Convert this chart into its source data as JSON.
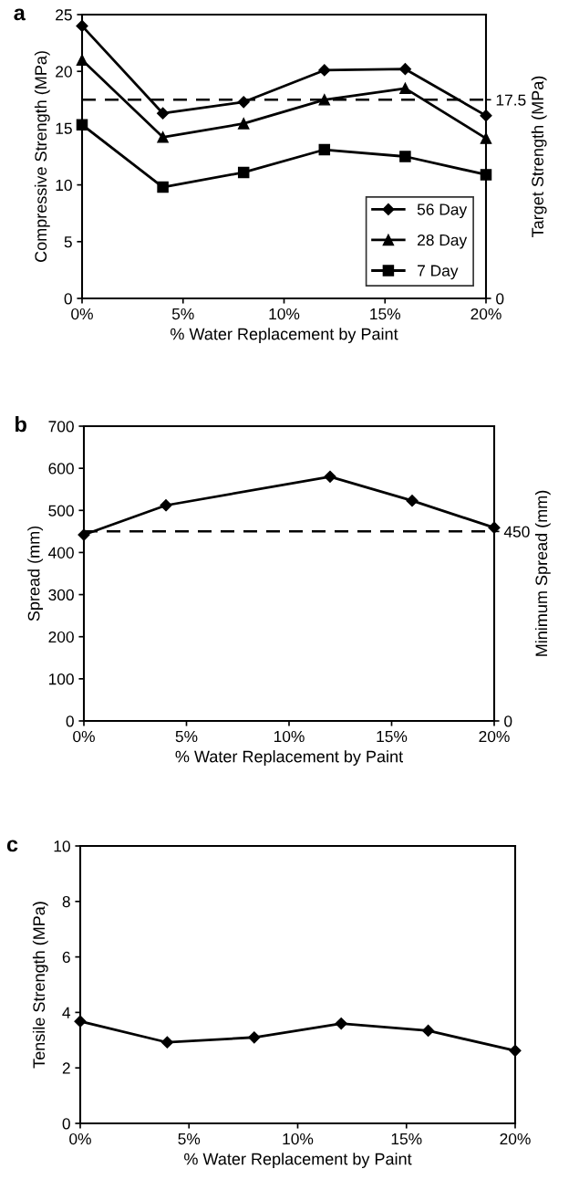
{
  "chart_data": [
    {
      "type": "line",
      "annotations": [
        "a"
      ],
      "xlabel": "% Water Replacement by Paint",
      "ylabel": "Compressive Strength (MPa)",
      "y2label": "Target Strength (MPa)",
      "x": [
        0,
        4,
        8,
        12,
        16,
        20
      ],
      "series": [
        {
          "name": "56 Day",
          "color": "#000000",
          "marker": "diamond",
          "values": [
            24.0,
            16.3,
            17.3,
            20.1,
            20.2,
            16.1
          ]
        },
        {
          "name": "28 Day",
          "color": "#000000",
          "marker": "triangle",
          "values": [
            21.0,
            14.2,
            15.4,
            17.5,
            18.5,
            14.1
          ]
        },
        {
          "name": "7 Day",
          "color": "#000000",
          "marker": "square",
          "values": [
            15.3,
            9.8,
            11.1,
            13.1,
            12.5,
            10.9
          ]
        }
      ],
      "xlim": [
        0,
        20
      ],
      "xticks": [
        {
          "value": 0,
          "label": "0%"
        },
        {
          "value": 5,
          "label": "5%"
        },
        {
          "value": 10,
          "label": "10%"
        },
        {
          "value": 15,
          "label": "15%"
        },
        {
          "value": 20,
          "label": "20%"
        }
      ],
      "ylim": [
        0,
        25
      ],
      "yticks": [
        0,
        5,
        10,
        15,
        20,
        25
      ],
      "y2lim": [
        0,
        25
      ],
      "y2ticks": [
        0,
        17.5
      ],
      "ref_lines": [
        {
          "axis": "y",
          "value": 17.5,
          "color": "#000000",
          "line_style": "dashed"
        }
      ],
      "legend": "bottom right",
      "grid": false,
      "line_style": "solid"
    },
    {
      "type": "line",
      "annotations": [
        "b"
      ],
      "xlabel": "% Water Replacement by Paint",
      "ylabel": "Spread (mm)",
      "y2label": "Minimum Spread (mm)",
      "x": [
        0,
        4,
        12,
        16,
        20
      ],
      "series": [
        {
          "color": "#000000",
          "marker": "diamond",
          "values": [
            442,
            512,
            580,
            523,
            459
          ]
        }
      ],
      "xlim": [
        0,
        20
      ],
      "xticks": [
        {
          "value": 0,
          "label": "0%"
        },
        {
          "value": 5,
          "label": "5%"
        },
        {
          "value": 10,
          "label": "10%"
        },
        {
          "value": 15,
          "label": "15%"
        },
        {
          "value": 20,
          "label": "20%"
        }
      ],
      "ylim": [
        0,
        700
      ],
      "yticks": [
        0,
        100,
        200,
        300,
        400,
        500,
        600,
        700
      ],
      "y2lim": [
        0,
        700
      ],
      "y2ticks": [
        0,
        450
      ],
      "ref_lines": [
        {
          "axis": "y",
          "value": 450,
          "color": "#000000",
          "line_style": "dashed"
        }
      ],
      "legend": false,
      "grid": false,
      "line_style": "solid"
    },
    {
      "type": "line",
      "annotations": [
        "c"
      ],
      "xlabel": "% Water Replacement by Paint",
      "ylabel": "Tensile Strength (MPa)",
      "x": [
        0,
        4,
        8,
        12,
        16,
        20
      ],
      "series": [
        {
          "color": "#000000",
          "marker": "diamond",
          "values": [
            3.68,
            2.92,
            3.1,
            3.6,
            3.34,
            2.62
          ]
        }
      ],
      "xlim": [
        0,
        20
      ],
      "xticks": [
        {
          "value": 0,
          "label": "0%"
        },
        {
          "value": 5,
          "label": "5%"
        },
        {
          "value": 10,
          "label": "10%"
        },
        {
          "value": 15,
          "label": "15%"
        },
        {
          "value": 20,
          "label": "20%"
        }
      ],
      "ylim": [
        0,
        10
      ],
      "yticks": [
        0,
        2,
        4,
        6,
        8,
        10
      ],
      "legend": false,
      "grid": false,
      "line_style": "solid"
    }
  ]
}
